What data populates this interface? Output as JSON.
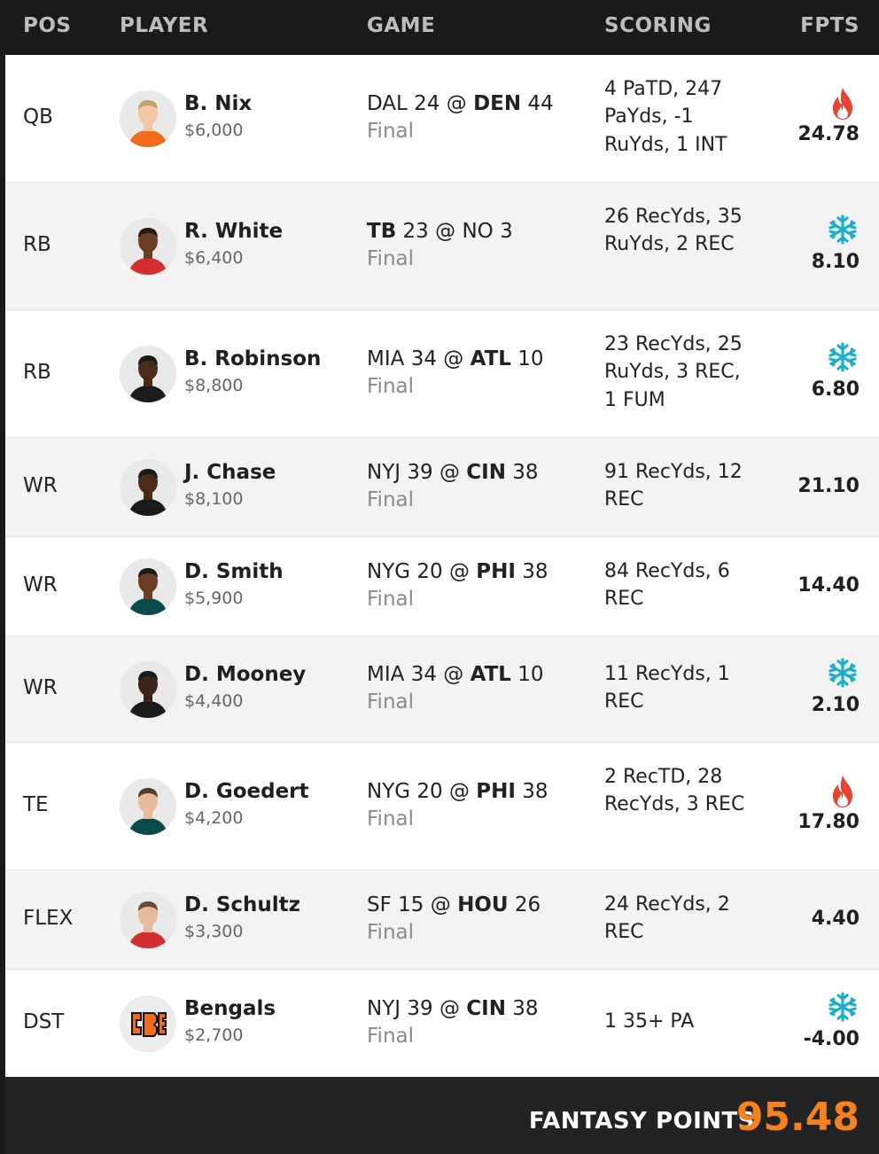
{
  "header": {
    "pos": "POS",
    "player": "PLAYER",
    "game": "GAME",
    "scoring": "SCORING",
    "fpts": "FPTS"
  },
  "colors": {
    "accent_orange": "#f5821f",
    "hot": "#e8412d",
    "cold": "#1ab0c9"
  },
  "rows": [
    {
      "pos": "QB",
      "name": "B. Nix",
      "salary": "$6,000",
      "game_a": "DAL",
      "score_a": "24",
      "at": "@",
      "game_b": "DEN",
      "score_b": "44",
      "winner": "b",
      "status": "Final",
      "scoring": "4 PaTD, 247 PaYds, -1 RuYds, 1 INT",
      "fpts": "24.78",
      "icon": "fire-icon"
    },
    {
      "pos": "RB",
      "name": "R. White",
      "salary": "$6,400",
      "game_a": "TB",
      "score_a": "23",
      "at": "@",
      "game_b": "NO",
      "score_b": "3",
      "winner": "a",
      "status": "Final",
      "scoring": "26 RecYds, 35 RuYds, 2 REC",
      "fpts": "8.10",
      "icon": "snowflake-icon"
    },
    {
      "pos": "RB",
      "name": "B. Robinson",
      "salary": "$8,800",
      "game_a": "MIA",
      "score_a": "34",
      "at": "@",
      "game_b": "ATL",
      "score_b": "10",
      "winner": "b",
      "status": "Final",
      "scoring": "23 RecYds, 25 RuYds, 3 REC, 1 FUM",
      "fpts": "6.80",
      "icon": "snowflake-icon"
    },
    {
      "pos": "WR",
      "name": "J. Chase",
      "salary": "$8,100",
      "game_a": "NYJ",
      "score_a": "39",
      "at": "@",
      "game_b": "CIN",
      "score_b": "38",
      "winner": "b",
      "status": "Final",
      "scoring": "91 RecYds, 12 REC",
      "fpts": "21.10",
      "icon": ""
    },
    {
      "pos": "WR",
      "name": "D. Smith",
      "salary": "$5,900",
      "game_a": "NYG",
      "score_a": "20",
      "at": "@",
      "game_b": "PHI",
      "score_b": "38",
      "winner": "b",
      "status": "Final",
      "scoring": "84 RecYds, 6 REC",
      "fpts": "14.40",
      "icon": ""
    },
    {
      "pos": "WR",
      "name": "D. Mooney",
      "salary": "$4,400",
      "game_a": "MIA",
      "score_a": "34",
      "at": "@",
      "game_b": "ATL",
      "score_b": "10",
      "winner": "b",
      "status": "Final",
      "scoring": "11 RecYds, 1 REC",
      "fpts": "2.10",
      "icon": "snowflake-icon"
    },
    {
      "pos": "TE",
      "name": "D. Goedert",
      "salary": "$4,200",
      "game_a": "NYG",
      "score_a": "20",
      "at": "@",
      "game_b": "PHI",
      "score_b": "38",
      "winner": "b",
      "status": "Final",
      "scoring": "2 RecTD, 28 RecYds, 3 REC",
      "fpts": "17.80",
      "icon": "fire-icon"
    },
    {
      "pos": "FLEX",
      "name": "D. Schultz",
      "salary": "$3,300",
      "game_a": "SF",
      "score_a": "15",
      "at": "@",
      "game_b": "HOU",
      "score_b": "26",
      "winner": "b",
      "status": "Final",
      "scoring": "24 RecYds, 2 REC",
      "fpts": "4.40",
      "icon": ""
    },
    {
      "pos": "DST",
      "name": "Bengals",
      "salary": "$2,700",
      "game_a": "NYJ",
      "score_a": "39",
      "at": "@",
      "game_b": "CIN",
      "score_b": "38",
      "winner": "b",
      "status": "Final",
      "scoring": "1 35+ PA",
      "fpts": "-4.00",
      "icon": "snowflake-icon"
    }
  ],
  "footer": {
    "label": "FANTASY POINTS",
    "value": "95.48"
  }
}
